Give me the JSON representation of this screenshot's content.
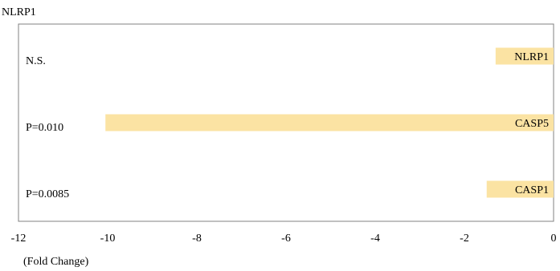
{
  "chart_data": {
    "type": "bar",
    "orientation": "horizontal",
    "title": "NLRP1",
    "xlabel": "(Fold Change)",
    "ylabel": "",
    "xlim": [
      -12,
      0
    ],
    "x_ticks": [
      -12,
      -10,
      -8,
      -6,
      -4,
      -2,
      0
    ],
    "grid": false,
    "legend": "none",
    "bar_color": "#FBE3A3",
    "categories": [
      "NLRP1",
      "CASP5",
      "CASP1"
    ],
    "values": [
      -1.3,
      -10.05,
      -1.5
    ],
    "p_values": [
      "N.S.",
      "P=0.010",
      "P=0.0085"
    ]
  }
}
